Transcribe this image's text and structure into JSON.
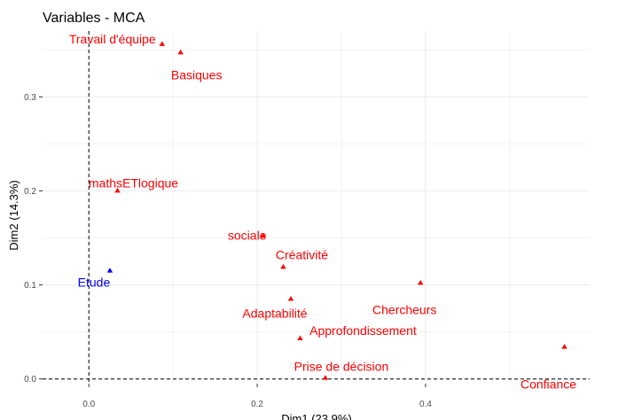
{
  "chart_data": {
    "type": "scatter",
    "title": "Variables - MCA",
    "xlabel": "Dim1 (23.9%)",
    "ylabel": "Dim2 (14.3%)",
    "xlim": [
      -0.055,
      0.595
    ],
    "ylim": [
      -0.005,
      0.37
    ],
    "x_ticks": [
      0.0,
      0.2,
      0.4
    ],
    "x_tick_labels": [
      "0.0",
      "0.2",
      "0.4"
    ],
    "y_ticks": [
      0.0,
      0.1,
      0.2,
      0.3
    ],
    "y_tick_labels": [
      "0.0",
      "0.1",
      "0.2",
      "0.3"
    ],
    "grid": true,
    "reference_lines": {
      "x": 0,
      "y": 0
    },
    "colors": {
      "red": "#ff0000",
      "blue": "#0000ff",
      "grid": "#ebebeb"
    },
    "points": [
      {
        "label": "Travail d'équipe",
        "x": 0.087,
        "y": 0.356,
        "color": "red"
      },
      {
        "label": "Basiques",
        "x": 0.109,
        "y": 0.347,
        "color": "red"
      },
      {
        "label": "mathsETlogique",
        "x": 0.034,
        "y": 0.2,
        "color": "red"
      },
      {
        "label": "sociale",
        "x": 0.207,
        "y": 0.152,
        "color": "red"
      },
      {
        "label": "Créativité",
        "x": 0.231,
        "y": 0.119,
        "color": "red"
      },
      {
        "label": "Etude",
        "x": 0.025,
        "y": 0.115,
        "color": "blue"
      },
      {
        "label": "Chercheurs",
        "x": 0.394,
        "y": 0.102,
        "color": "red"
      },
      {
        "label": "Adaptabilité",
        "x": 0.24,
        "y": 0.085,
        "color": "red"
      },
      {
        "label": "Approfondissement",
        "x": 0.251,
        "y": 0.043,
        "color": "red"
      },
      {
        "label": "Confiance",
        "x": 0.565,
        "y": 0.034,
        "color": "red"
      },
      {
        "label": "Prise de décision",
        "x": 0.281,
        "y": 0.001,
        "color": "red"
      }
    ]
  }
}
